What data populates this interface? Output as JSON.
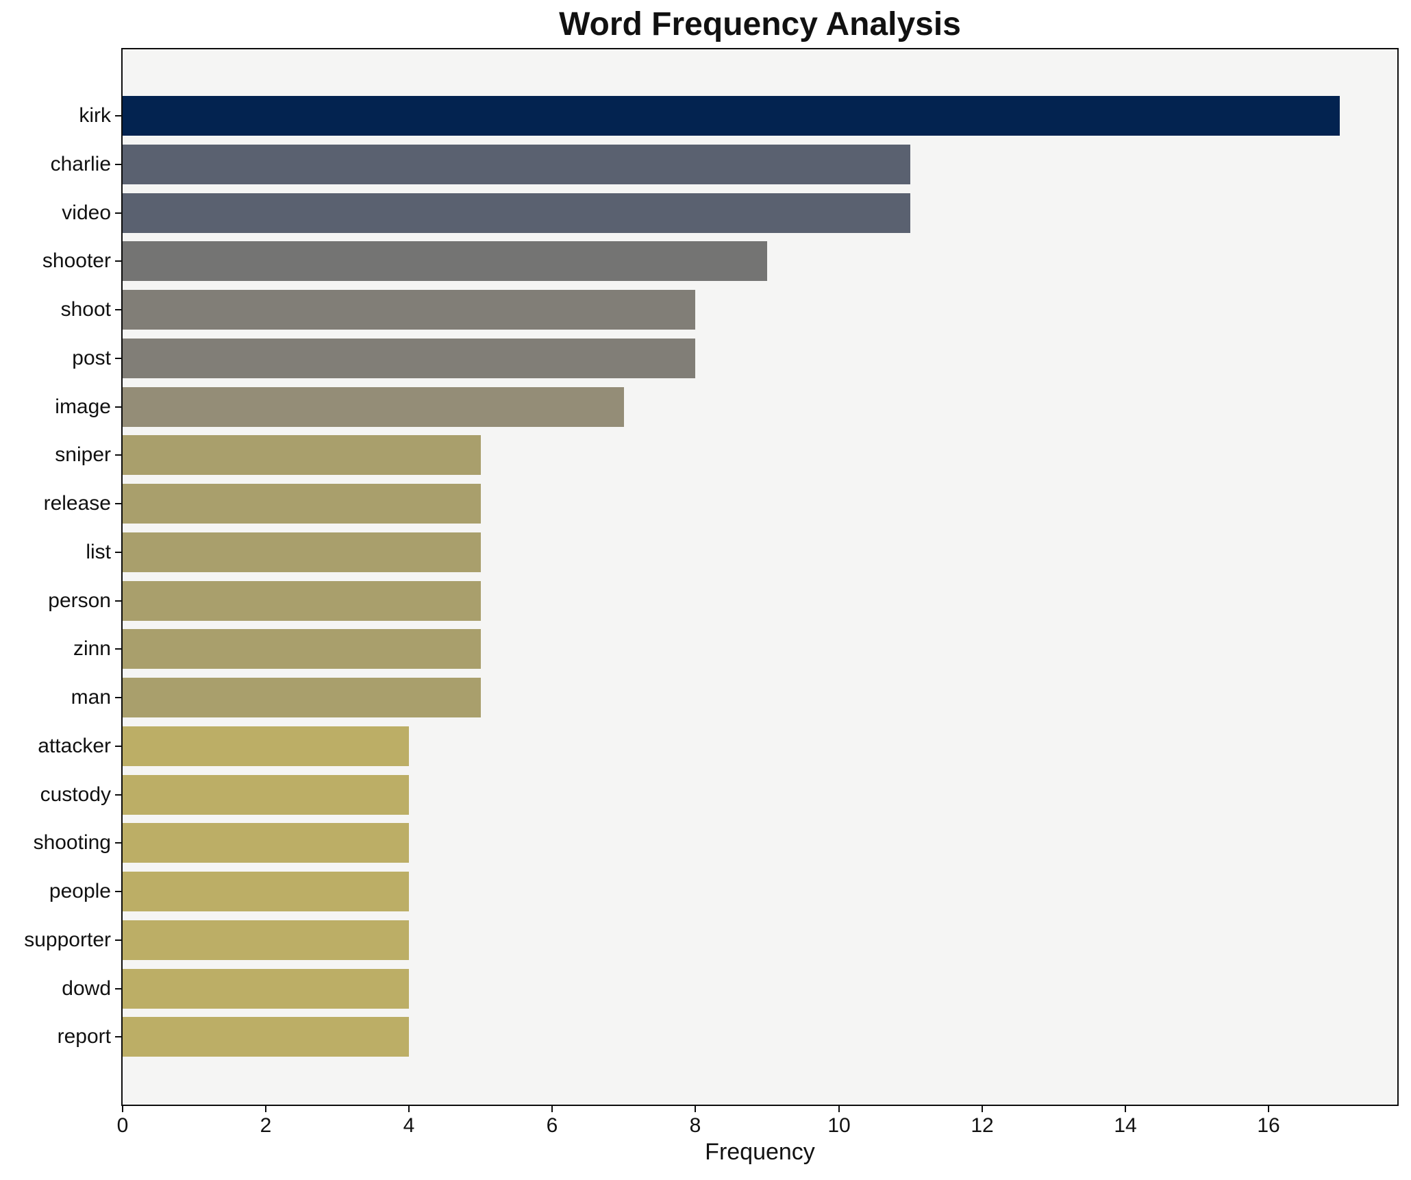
{
  "chart_data": {
    "type": "bar",
    "orientation": "horizontal",
    "title": "Word Frequency Analysis",
    "xlabel": "Frequency",
    "ylabel": "",
    "categories": [
      "kirk",
      "charlie",
      "video",
      "shooter",
      "shoot",
      "post",
      "image",
      "sniper",
      "release",
      "list",
      "person",
      "zinn",
      "man",
      "attacker",
      "custody",
      "shooting",
      "people",
      "supporter",
      "dowd",
      "report"
    ],
    "values": [
      17,
      11,
      11,
      9,
      8,
      8,
      7,
      5,
      5,
      5,
      5,
      5,
      5,
      4,
      4,
      4,
      4,
      4,
      4,
      4
    ],
    "bar_colors": [
      "#032350",
      "#5a6170",
      "#5a6170",
      "#747473",
      "#817e77",
      "#817e77",
      "#948d77",
      "#a99f6c",
      "#a99f6c",
      "#a99f6c",
      "#a99f6c",
      "#a99f6c",
      "#a99f6c",
      "#bcae66",
      "#bcae66",
      "#bcae66",
      "#bcae66",
      "#bcae66",
      "#bcae66",
      "#bcae66"
    ],
    "xlim": [
      0,
      17.8
    ],
    "xticks": [
      0,
      2,
      4,
      6,
      8,
      10,
      12,
      14,
      16
    ],
    "grid": false,
    "legend": "none",
    "plot_background": "#f5f5f4",
    "figure_background": "#ffffff",
    "spine_color": "#0d0d0d",
    "text_color": "#111111"
  }
}
